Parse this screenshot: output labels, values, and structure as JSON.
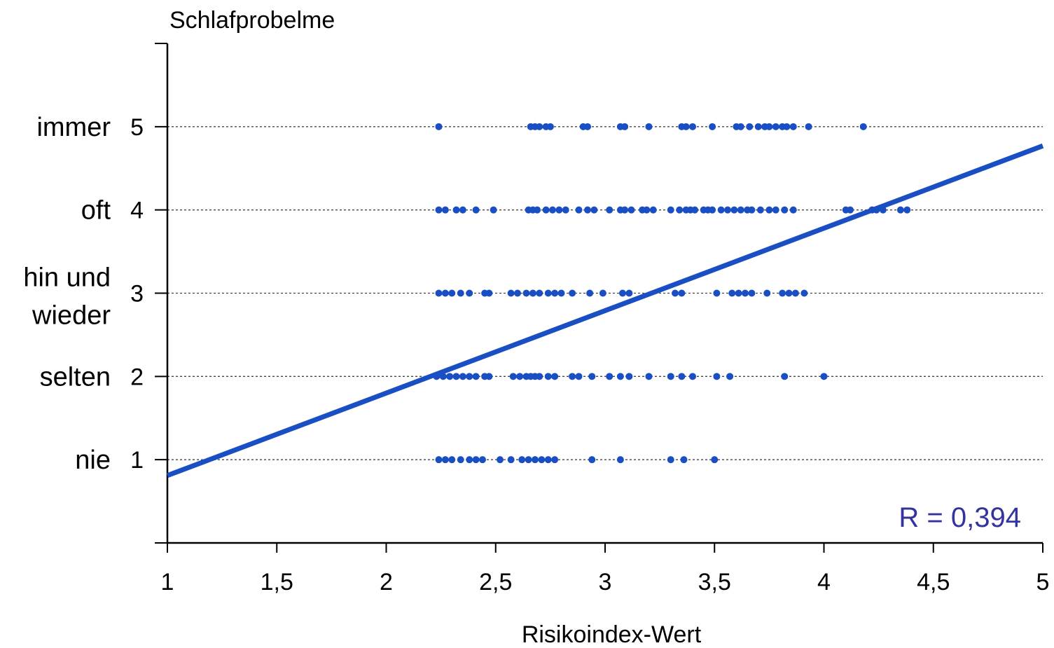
{
  "chart_data": {
    "type": "scatter",
    "title": "Schlafprobelme",
    "xlabel": "Risikoindex-Wert",
    "ylabel": "",
    "xlim": [
      1,
      5
    ],
    "ylim": [
      0,
      6
    ],
    "x_ticks": [
      1,
      1.5,
      2,
      2.5,
      3,
      3.5,
      4,
      4.5,
      5
    ],
    "x_tick_labels": [
      "1",
      "1,5",
      "2",
      "2,5",
      "3",
      "3,5",
      "4",
      "4,5",
      "5"
    ],
    "y_ticks": [
      1,
      2,
      3,
      4,
      5
    ],
    "y_tick_labels": [
      "1",
      "2",
      "3",
      "4",
      "5"
    ],
    "y_category_labels": [
      {
        "value": 1,
        "lines": [
          "nie"
        ]
      },
      {
        "value": 2,
        "lines": [
          "selten"
        ]
      },
      {
        "value": 3,
        "lines": [
          "hin und",
          "wieder"
        ]
      },
      {
        "value": 4,
        "lines": [
          "oft"
        ]
      },
      {
        "value": 5,
        "lines": [
          "immer"
        ]
      }
    ],
    "grid": "dashed horizontal lines at y ticks",
    "colors": {
      "points": "#1a4fc4",
      "line": "#1a4fc4",
      "annotation": "#3333a0",
      "axis": "#000000",
      "grid": "#444444"
    },
    "annotation": "R = 0,394",
    "regression_line": {
      "x": [
        1,
        5
      ],
      "y": [
        0.81,
        4.77
      ]
    },
    "series": [
      {
        "values": [
          [
            2.24,
            5
          ],
          [
            2.66,
            5
          ],
          [
            2.68,
            5
          ],
          [
            2.7,
            5
          ],
          [
            2.73,
            5
          ],
          [
            2.75,
            5
          ],
          [
            2.9,
            5
          ],
          [
            2.92,
            5
          ],
          [
            3.07,
            5
          ],
          [
            3.09,
            5
          ],
          [
            3.2,
            5
          ],
          [
            3.35,
            5
          ],
          [
            3.37,
            5
          ],
          [
            3.4,
            5
          ],
          [
            3.49,
            5
          ],
          [
            3.6,
            5
          ],
          [
            3.62,
            5
          ],
          [
            3.66,
            5
          ],
          [
            3.7,
            5
          ],
          [
            3.73,
            5
          ],
          [
            3.75,
            5
          ],
          [
            3.78,
            5
          ],
          [
            3.81,
            5
          ],
          [
            3.83,
            5
          ],
          [
            3.86,
            5
          ],
          [
            3.93,
            5
          ],
          [
            4.18,
            5
          ],
          [
            2.24,
            4
          ],
          [
            2.27,
            4
          ],
          [
            2.32,
            4
          ],
          [
            2.35,
            4
          ],
          [
            2.41,
            4
          ],
          [
            2.49,
            4
          ],
          [
            2.65,
            4
          ],
          [
            2.67,
            4
          ],
          [
            2.69,
            4
          ],
          [
            2.73,
            4
          ],
          [
            2.76,
            4
          ],
          [
            2.79,
            4
          ],
          [
            2.82,
            4
          ],
          [
            2.88,
            4
          ],
          [
            2.92,
            4
          ],
          [
            2.95,
            4
          ],
          [
            3.02,
            4
          ],
          [
            3.07,
            4
          ],
          [
            3.09,
            4
          ],
          [
            3.12,
            4
          ],
          [
            3.17,
            4
          ],
          [
            3.19,
            4
          ],
          [
            3.22,
            4
          ],
          [
            3.3,
            4
          ],
          [
            3.34,
            4
          ],
          [
            3.37,
            4
          ],
          [
            3.39,
            4
          ],
          [
            3.41,
            4
          ],
          [
            3.45,
            4
          ],
          [
            3.47,
            4
          ],
          [
            3.49,
            4
          ],
          [
            3.53,
            4
          ],
          [
            3.56,
            4
          ],
          [
            3.59,
            4
          ],
          [
            3.62,
            4
          ],
          [
            3.65,
            4
          ],
          [
            3.67,
            4
          ],
          [
            3.71,
            4
          ],
          [
            3.75,
            4
          ],
          [
            3.78,
            4
          ],
          [
            3.82,
            4
          ],
          [
            3.86,
            4
          ],
          [
            4.1,
            4
          ],
          [
            4.12,
            4
          ],
          [
            4.22,
            4
          ],
          [
            4.24,
            4
          ],
          [
            4.27,
            4
          ],
          [
            4.35,
            4
          ],
          [
            4.38,
            4
          ],
          [
            2.24,
            3
          ],
          [
            2.27,
            3
          ],
          [
            2.3,
            3
          ],
          [
            2.34,
            3
          ],
          [
            2.38,
            3
          ],
          [
            2.45,
            3
          ],
          [
            2.47,
            3
          ],
          [
            2.57,
            3
          ],
          [
            2.6,
            3
          ],
          [
            2.64,
            3
          ],
          [
            2.67,
            3
          ],
          [
            2.7,
            3
          ],
          [
            2.74,
            3
          ],
          [
            2.77,
            3
          ],
          [
            2.8,
            3
          ],
          [
            2.85,
            3
          ],
          [
            2.93,
            3
          ],
          [
            2.99,
            3
          ],
          [
            3.08,
            3
          ],
          [
            3.11,
            3
          ],
          [
            3.32,
            3
          ],
          [
            3.35,
            3
          ],
          [
            3.51,
            3
          ],
          [
            3.58,
            3
          ],
          [
            3.61,
            3
          ],
          [
            3.64,
            3
          ],
          [
            3.67,
            3
          ],
          [
            3.74,
            3
          ],
          [
            3.81,
            3
          ],
          [
            3.84,
            3
          ],
          [
            3.87,
            3
          ],
          [
            3.91,
            3
          ],
          [
            2.23,
            2
          ],
          [
            2.26,
            2
          ],
          [
            2.29,
            2
          ],
          [
            2.32,
            2
          ],
          [
            2.35,
            2
          ],
          [
            2.38,
            2
          ],
          [
            2.41,
            2
          ],
          [
            2.45,
            2
          ],
          [
            2.47,
            2
          ],
          [
            2.58,
            2
          ],
          [
            2.61,
            2
          ],
          [
            2.64,
            2
          ],
          [
            2.66,
            2
          ],
          [
            2.68,
            2
          ],
          [
            2.7,
            2
          ],
          [
            2.74,
            2
          ],
          [
            2.77,
            2
          ],
          [
            2.85,
            2
          ],
          [
            2.88,
            2
          ],
          [
            2.94,
            2
          ],
          [
            3.02,
            2
          ],
          [
            3.07,
            2
          ],
          [
            3.11,
            2
          ],
          [
            3.2,
            2
          ],
          [
            3.3,
            2
          ],
          [
            3.35,
            2
          ],
          [
            3.4,
            2
          ],
          [
            3.51,
            2
          ],
          [
            3.57,
            2
          ],
          [
            3.82,
            2
          ],
          [
            4.0,
            2
          ],
          [
            2.24,
            1
          ],
          [
            2.27,
            1
          ],
          [
            2.3,
            1
          ],
          [
            2.34,
            1
          ],
          [
            2.38,
            1
          ],
          [
            2.41,
            1
          ],
          [
            2.44,
            1
          ],
          [
            2.52,
            1
          ],
          [
            2.57,
            1
          ],
          [
            2.62,
            1
          ],
          [
            2.65,
            1
          ],
          [
            2.68,
            1
          ],
          [
            2.71,
            1
          ],
          [
            2.74,
            1
          ],
          [
            2.77,
            1
          ],
          [
            2.94,
            1
          ],
          [
            3.07,
            1
          ],
          [
            3.3,
            1
          ],
          [
            3.36,
            1
          ],
          [
            3.5,
            1
          ]
        ]
      }
    ]
  }
}
